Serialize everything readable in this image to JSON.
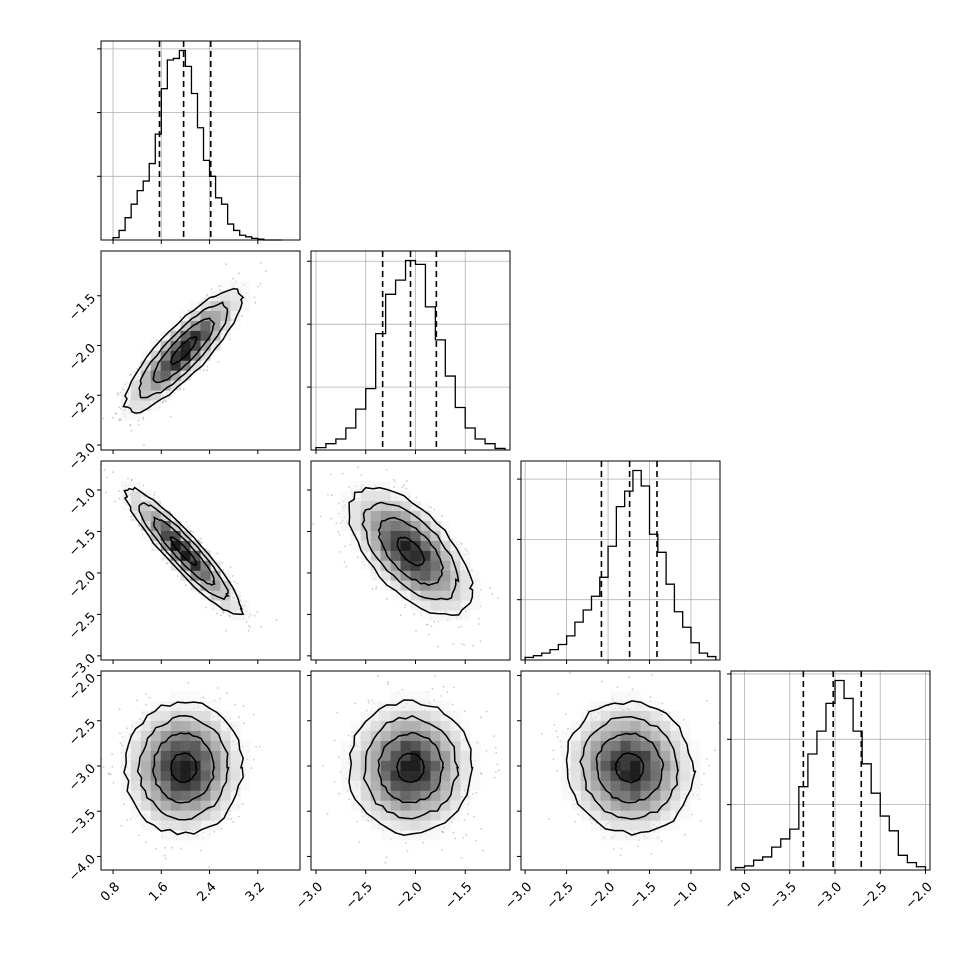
{
  "chart_data": {
    "type": "corner",
    "grid": true,
    "parameters": [
      {
        "range": [
          0.6,
          3.9
        ],
        "ticks": [
          0.8,
          1.6,
          2.4,
          3.2
        ],
        "tick_labels": [
          "0.8",
          "1.6",
          "2.4",
          "3.2"
        ],
        "quantiles": [
          1.57,
          1.97,
          2.42
        ],
        "hist_bin_edges": [
          0.8,
          0.9,
          1.0,
          1.1,
          1.2,
          1.3,
          1.4,
          1.5,
          1.6,
          1.7,
          1.8,
          1.9,
          2.0,
          2.1,
          2.2,
          2.3,
          2.4,
          2.5,
          2.6,
          2.7,
          2.8,
          2.9,
          3.0,
          3.1,
          3.2,
          3.3,
          3.4,
          3.5,
          3.6
        ],
        "hist_counts": [
          3,
          12,
          28,
          45,
          62,
          74,
          96,
          133,
          190,
          226,
          228,
          238,
          218,
          184,
          141,
          100,
          80,
          53,
          45,
          20,
          12,
          6,
          4,
          2,
          1,
          0,
          0,
          0
        ]
      },
      {
        "range": [
          -3.05,
          -1.05
        ],
        "ticks": [
          -3.0,
          -2.5,
          -2.0,
          -1.5
        ],
        "tick_labels": [
          "−3.0",
          "−2.5",
          "−2.0",
          "−1.5"
        ],
        "quantiles": [
          -2.33,
          -2.05,
          -1.79
        ],
        "hist_bin_edges": [
          -3.0,
          -2.9,
          -2.8,
          -2.7,
          -2.6,
          -2.5,
          -2.4,
          -2.3,
          -2.2,
          -2.1,
          -2.0,
          -1.9,
          -1.8,
          -1.7,
          -1.6,
          -1.5,
          -1.4,
          -1.3,
          -1.2,
          -1.1
        ],
        "hist_counts": [
          3,
          8,
          14,
          28,
          52,
          78,
          148,
          198,
          216,
          241,
          236,
          182,
          140,
          94,
          54,
          28,
          14,
          8,
          2
        ]
      },
      {
        "range": [
          -3.05,
          -0.65
        ],
        "ticks": [
          -3.0,
          -2.5,
          -2.0,
          -1.5,
          -1.0
        ],
        "tick_labels": [
          "−3.0",
          "−2.5",
          "−2.0",
          "−1.5",
          "−1.0"
        ],
        "quantiles": [
          -2.08,
          -1.74,
          -1.41
        ],
        "hist_bin_edges": [
          -3.0,
          -2.9,
          -2.8,
          -2.7,
          -2.6,
          -2.5,
          -2.4,
          -2.3,
          -2.2,
          -2.1,
          -2.0,
          -1.9,
          -1.8,
          -1.7,
          -1.6,
          -1.5,
          -1.4,
          -1.3,
          -1.2,
          -1.1,
          -1.0,
          -0.9,
          -0.8,
          -0.7
        ],
        "hist_counts": [
          3,
          5,
          8,
          12,
          18,
          28,
          44,
          58,
          74,
          96,
          132,
          178,
          196,
          220,
          202,
          146,
          125,
          88,
          56,
          38,
          20,
          8,
          4
        ]
      },
      {
        "range": [
          -4.15,
          -1.95
        ],
        "ticks": [
          -4.0,
          -3.5,
          -3.0,
          -2.5,
          -2.0
        ],
        "tick_labels": [
          "−4.0",
          "−3.5",
          "−3.0",
          "−2.5",
          "−2.0"
        ],
        "quantiles": [
          -3.35,
          -3.02,
          -2.71
        ],
        "hist_bin_edges": [
          -4.1,
          -4.0,
          -3.9,
          -3.8,
          -3.7,
          -3.6,
          -3.5,
          -3.4,
          -3.3,
          -3.2,
          -3.1,
          -3.0,
          -2.9,
          -2.8,
          -2.7,
          -2.6,
          -2.5,
          -2.4,
          -2.3,
          -2.2,
          -2.1,
          -2.0
        ],
        "hist_counts": [
          3,
          5,
          12,
          16,
          28,
          38,
          50,
          102,
          142,
          170,
          204,
          232,
          210,
          170,
          130,
          94,
          66,
          48,
          18,
          9,
          4
        ]
      }
    ],
    "correlations": {
      "1,0": 0.85,
      "2,0": -0.92,
      "2,1": -0.6,
      "3,0": 0.0,
      "3,1": 0.0,
      "3,2": -0.05
    }
  }
}
